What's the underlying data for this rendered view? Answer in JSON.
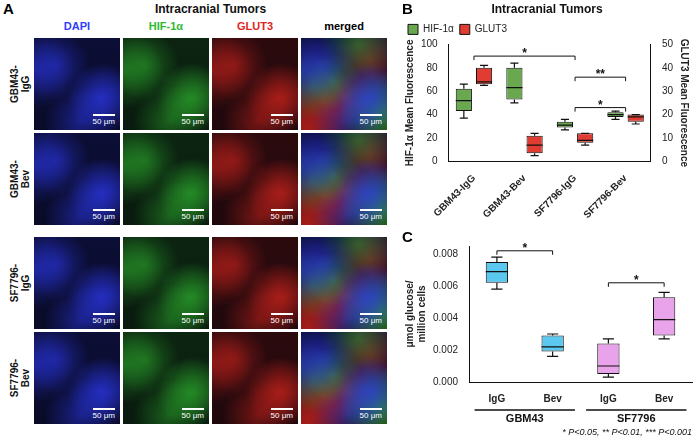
{
  "panel_a": {
    "panel_label": "A",
    "title": "Intracranial Tumors",
    "columns": [
      {
        "label": "DAPI",
        "color": "#2f3cff"
      },
      {
        "label": "HIF-1α",
        "color": "#2fb82f"
      },
      {
        "label": "GLUT3",
        "color": "#e0261e"
      },
      {
        "label": "merged",
        "color": "#000000"
      }
    ],
    "rows": [
      "GBM43-IgG",
      "GBM43-Bev",
      "SF7796-IgG",
      "SF7796-Bev"
    ],
    "scale_bar": "50 μm"
  },
  "chart_data": [
    {
      "panel_label": "B",
      "type": "box",
      "title": "Intracranial Tumors",
      "categories": [
        "GBM43-IgG",
        "GBM43-Bev",
        "SF7796-IgG",
        "SF7796-Bev"
      ],
      "y_label": "HIF-1α Mean Fluorescence",
      "y2_label": "GLUT3 Mean Fluorescence",
      "ylim": [
        0,
        100
      ],
      "yticks": [
        0,
        20,
        40,
        60,
        80,
        100
      ],
      "y2lim": [
        0,
        50
      ],
      "y2ticks": [
        0,
        10,
        20,
        30,
        40,
        50
      ],
      "legend": "top",
      "series": [
        {
          "name": "HIF-1α",
          "color": "#6aa84f",
          "axis": "y",
          "min": [
            37,
            50,
            27,
            36
          ],
          "q1": [
            43,
            53,
            29,
            38
          ],
          "median": [
            52,
            63,
            31,
            40
          ],
          "q3": [
            62,
            80,
            34,
            42
          ],
          "max": [
            66,
            84,
            36,
            43
          ]
        },
        {
          "name": "GLUT3",
          "color": "#e03c31",
          "axis": "y2",
          "min": [
            32.5,
            2.5,
            7,
            16
          ],
          "q1": [
            33,
            3.5,
            8,
            17
          ],
          "median": [
            34,
            7,
            9,
            19
          ],
          "q3": [
            40,
            11,
            12,
            20
          ],
          "max": [
            41,
            12,
            12,
            20
          ]
        }
      ],
      "annotations": [
        {
          "text": "*",
          "from": 0,
          "to": 2,
          "y": 90
        },
        {
          "text": "**",
          "from": 2,
          "to": 3,
          "y": 72
        },
        {
          "text": "*",
          "from": 2,
          "to": 3,
          "y": 46
        }
      ]
    },
    {
      "panel_label": "C",
      "type": "box",
      "categories": [
        "IgG",
        "Bev",
        "IgG",
        "Bev"
      ],
      "groups": [
        {
          "label": "GBM43",
          "from": 0,
          "to": 1
        },
        {
          "label": "SF7796",
          "from": 2,
          "to": 3
        }
      ],
      "y_label": "μmol glucose/ million cells",
      "ylim": [
        0,
        0.0085
      ],
      "yticks": [
        {
          "value": 0,
          "label": "0.000"
        },
        {
          "value": 0.002,
          "label": "0.002"
        },
        {
          "value": 0.004,
          "label": "0.004"
        },
        {
          "value": 0.006,
          "label": "0.006"
        },
        {
          "value": 0.008,
          "label": "0.008"
        }
      ],
      "series": [
        {
          "colors": [
            "#5bc8ef",
            "#5bc8ef",
            "#e9a3ea",
            "#e9a3ea"
          ],
          "min": [
            0.0058,
            0.0016,
            0.0003,
            0.0027
          ],
          "q1": [
            0.0062,
            0.0019,
            0.0005,
            0.0029
          ],
          "median": [
            0.0069,
            0.0022,
            0.001,
            0.0039
          ],
          "q3": [
            0.0075,
            0.0029,
            0.0024,
            0.0053
          ],
          "max": [
            0.0078,
            0.003,
            0.0027,
            0.0056
          ]
        }
      ],
      "annotations": [
        {
          "text": "*",
          "from": 0,
          "to": 1,
          "y": 0.0082
        },
        {
          "text": "*",
          "from": 2,
          "to": 3,
          "y": 0.0062
        }
      ],
      "footnote": "* P<0.05, ** P<0.01, *** P<0.001"
    }
  ]
}
